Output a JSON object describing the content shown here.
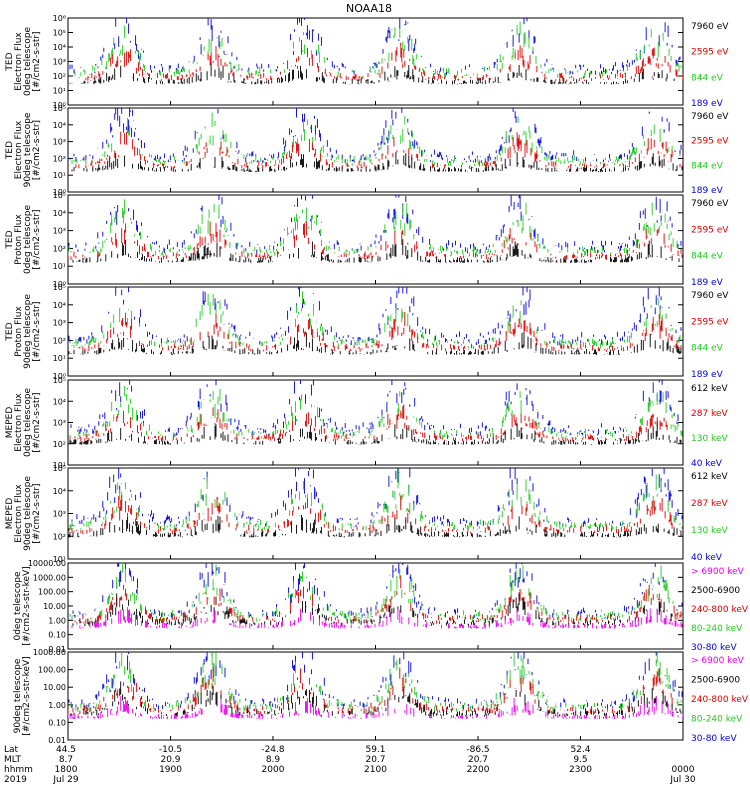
{
  "chart_data": {
    "type": "line",
    "title": "NOAA18",
    "panels": [
      {
        "ylabel_lines": [
          "TED",
          "Electron Flux",
          "0deg telescope",
          "[#/cm2-s-str]"
        ],
        "yscale": "log",
        "yticks": [
          "10⁰",
          "10¹",
          "10²",
          "10³",
          "10⁴",
          "10⁵",
          "10⁶"
        ],
        "ylim_exp": [
          0,
          6
        ],
        "channels": [
          {
            "label": "7960 eV",
            "color": "#000000"
          },
          {
            "label": "2595 eV",
            "color": "#dd0000"
          },
          {
            "label": "844 eV",
            "color": "#22cc22"
          },
          {
            "label": "189 eV",
            "color": "#0000dd"
          }
        ]
      },
      {
        "ylabel_lines": [
          "TED",
          "Electron Flux",
          "90deg telescope",
          "[#/cm2-s-str]"
        ],
        "yscale": "log",
        "yticks": [
          "10⁰",
          "10¹",
          "10²",
          "10³",
          "10⁴",
          "10⁵"
        ],
        "ylim_exp": [
          0,
          5
        ],
        "channels": [
          {
            "label": "7960 eV",
            "color": "#000000"
          },
          {
            "label": "2595 eV",
            "color": "#dd0000"
          },
          {
            "label": "844 eV",
            "color": "#22cc22"
          },
          {
            "label": "189 eV",
            "color": "#0000dd"
          }
        ]
      },
      {
        "ylabel_lines": [
          "TED",
          "Proton Flux",
          "0deg telescope",
          "[#/cm2-s-str]"
        ],
        "yscale": "log",
        "yticks": [
          "10⁰",
          "10¹",
          "10²",
          "10³",
          "10⁴",
          "10⁵"
        ],
        "ylim_exp": [
          0,
          5
        ],
        "channels": [
          {
            "label": "7960 eV",
            "color": "#000000"
          },
          {
            "label": "2595 eV",
            "color": "#dd0000"
          },
          {
            "label": "844 eV",
            "color": "#22cc22"
          },
          {
            "label": "189 eV",
            "color": "#0000dd"
          }
        ]
      },
      {
        "ylabel_lines": [
          "TED",
          "Proton Flux",
          "90deg telescope",
          "[#/cm2-s-str]"
        ],
        "yscale": "log",
        "yticks": [
          "10⁰",
          "10¹",
          "10²",
          "10³",
          "10⁴",
          "10⁵"
        ],
        "ylim_exp": [
          0,
          5
        ],
        "channels": [
          {
            "label": "7960 eV",
            "color": "#000000"
          },
          {
            "label": "2595 eV",
            "color": "#dd0000"
          },
          {
            "label": "844 eV",
            "color": "#22cc22"
          },
          {
            "label": "189 eV",
            "color": "#0000dd"
          }
        ]
      },
      {
        "ylabel_lines": [
          "MEPED",
          "Electron Flux",
          "0deg telescope",
          "[#/cm2-s-str]"
        ],
        "yscale": "log",
        "yticks": [
          "10¹",
          "10²",
          "10³",
          "10⁴",
          "10⁵"
        ],
        "ylim_exp": [
          1,
          5
        ],
        "channels": [
          {
            "label": "612 keV",
            "color": "#000000"
          },
          {
            "label": "287 keV",
            "color": "#dd0000"
          },
          {
            "label": "130 keV",
            "color": "#22cc22"
          },
          {
            "label": "40 keV",
            "color": "#0000dd"
          }
        ]
      },
      {
        "ylabel_lines": [
          "MEPED",
          "Electron Flux",
          "90deg telescope",
          "[#/cm2-s-str]"
        ],
        "yscale": "log",
        "yticks": [
          "10¹",
          "10²",
          "10³",
          "10⁴",
          "10⁵"
        ],
        "ylim_exp": [
          1,
          5
        ],
        "channels": [
          {
            "label": "612 keV",
            "color": "#000000"
          },
          {
            "label": "287 keV",
            "color": "#dd0000"
          },
          {
            "label": "130 keV",
            "color": "#22cc22"
          },
          {
            "label": "40 keV",
            "color": "#0000dd"
          }
        ]
      },
      {
        "ylabel_lines": [
          "0deg telescope",
          "[#/cm2-s-str-keV]"
        ],
        "yscale": "log",
        "yticks": [
          "0.01",
          "0.10",
          "1.00",
          "10.00",
          "100.00",
          "1000.00",
          "10000.00"
        ],
        "ylim_exp": [
          -2,
          4
        ],
        "channels": [
          {
            "label": "> 6900 keV",
            "color": "#ee00ee"
          },
          {
            "label": "2500-6900",
            "color": "#000000"
          },
          {
            "label": "240-800 keV",
            "color": "#dd0000"
          },
          {
            "label": "80-240 keV",
            "color": "#22cc22"
          },
          {
            "label": "30-80 keV",
            "color": "#0000dd"
          }
        ]
      },
      {
        "ylabel_lines": [
          "90deg telescope",
          "[#/cm2-s-str-keV]"
        ],
        "yscale": "log",
        "yticks": [
          "0.01",
          "0.10",
          "1.00",
          "10.00",
          "100.00",
          "1000.00"
        ],
        "ylim_exp": [
          -2,
          3
        ],
        "channels": [
          {
            "label": "> 6900 keV",
            "color": "#ee00ee"
          },
          {
            "label": "2500-6900",
            "color": "#000000"
          },
          {
            "label": "240-800 keV",
            "color": "#dd0000"
          },
          {
            "label": "80-240 keV",
            "color": "#22cc22"
          },
          {
            "label": "30-80 keV",
            "color": "#0000dd"
          }
        ]
      }
    ],
    "xaxis": {
      "row_labels": [
        "Lat",
        "MLT",
        "hhmm",
        "2019"
      ],
      "ticks": [
        {
          "frac": 0.0,
          "lat": "44.5",
          "mlt": "8.7",
          "hhmm": "1800",
          "date": "Jul 29"
        },
        {
          "frac": 0.1667,
          "lat": "-10.5",
          "mlt": "20.9",
          "hhmm": "1900",
          "date": ""
        },
        {
          "frac": 0.3333,
          "lat": "-24.8",
          "mlt": "8.9",
          "hhmm": "2000",
          "date": ""
        },
        {
          "frac": 0.5,
          "lat": "59.1",
          "mlt": "20.7",
          "hhmm": "2100",
          "date": ""
        },
        {
          "frac": 0.6667,
          "lat": "-86.5",
          "mlt": "20.7",
          "hhmm": "2200",
          "date": ""
        },
        {
          "frac": 0.8333,
          "lat": "52.4",
          "mlt": "9.5",
          "hhmm": "2300",
          "date": ""
        },
        {
          "frac": 1.0,
          "lat": "",
          "mlt": "",
          "hhmm": "0000",
          "date": "Jul 30"
        }
      ]
    }
  }
}
